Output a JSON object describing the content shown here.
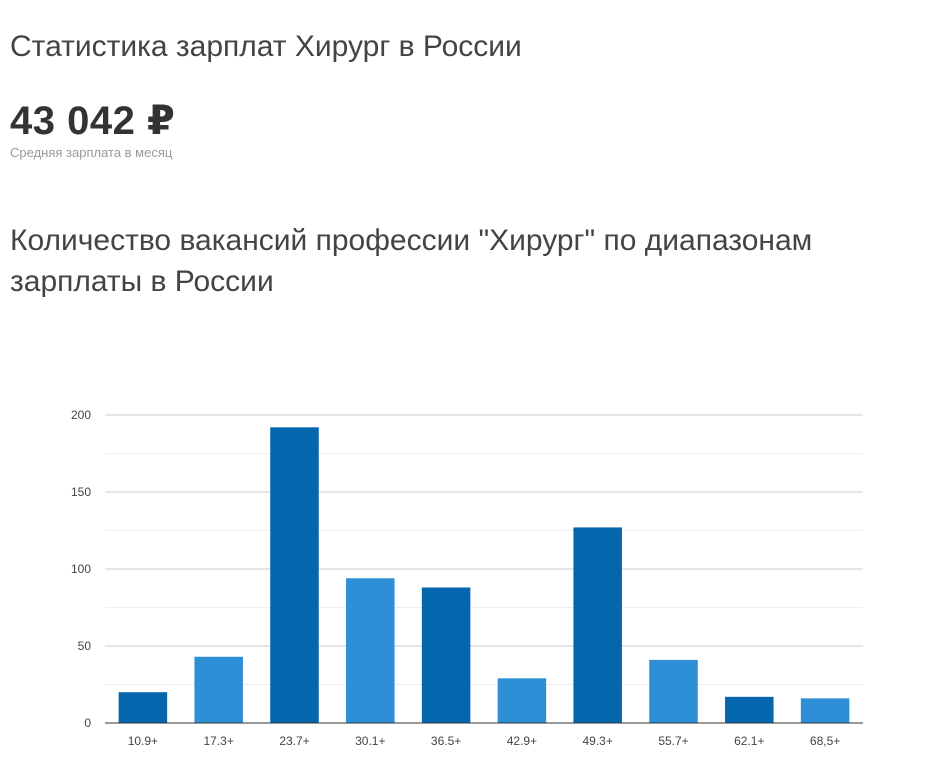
{
  "header": {
    "title": "Статистика зарплат Хирург в России",
    "average_salary": "43 042 ₽",
    "average_caption": "Средняя зарплата в месяц"
  },
  "chart_section": {
    "title": "Количество вакансий профессии \"Хирург\" по диапазонам зарплаты в России"
  },
  "colors": {
    "dark_bar": "#0566ad",
    "light_bar": "#2e8fd7",
    "grid": "#cccccc",
    "minor_grid": "#eeeeee",
    "axis": "#333333",
    "tick_text": "#444444"
  },
  "chart_data": {
    "type": "bar",
    "categories": [
      "10.9+",
      "17.3+",
      "23.7+",
      "30.1+",
      "36.5+",
      "42.9+",
      "49.3+",
      "55.7+",
      "62.1+",
      "68,5+"
    ],
    "values": [
      20,
      43,
      192,
      94,
      88,
      29,
      127,
      41,
      17,
      16
    ],
    "bar_shades": [
      "dark",
      "light",
      "dark",
      "light",
      "dark",
      "light",
      "dark",
      "light",
      "dark",
      "light"
    ],
    "y_ticks": [
      0,
      50,
      100,
      150,
      200
    ],
    "ylim": [
      0,
      200
    ],
    "grid": true
  }
}
